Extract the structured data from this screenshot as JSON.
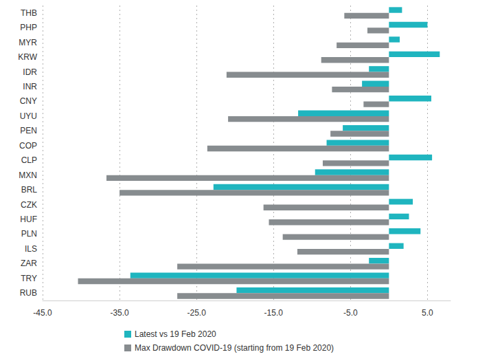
{
  "chart_data": {
    "type": "bar",
    "orientation": "horizontal",
    "categories": [
      "THB",
      "PHP",
      "MYR",
      "KRW",
      "IDR",
      "INR",
      "CNY",
      "UYU",
      "PEN",
      "COP",
      "CLP",
      "MXN",
      "BRL",
      "CZK",
      "HUF",
      "PLN",
      "ILS",
      "ZAR",
      "TRY",
      "RUB"
    ],
    "series": [
      {
        "name": "Latest vs 19 Feb 2020",
        "color": "#1fb5bf",
        "values": [
          1.7,
          5.0,
          1.4,
          6.6,
          -2.6,
          -3.5,
          5.5,
          -11.8,
          -6.0,
          -8.1,
          5.6,
          -9.6,
          -22.8,
          3.1,
          2.6,
          4.1,
          1.9,
          -2.6,
          -33.6,
          -19.8
        ]
      },
      {
        "name": "Max Drawdown COVID-19 (starting from 19 Feb 2020)",
        "color": "#878c8f",
        "values": [
          -5.8,
          -2.8,
          -6.8,
          -8.8,
          -21.1,
          -7.4,
          -3.3,
          -20.9,
          -7.6,
          -23.6,
          -8.6,
          -36.7,
          -35.0,
          -16.3,
          -15.6,
          -13.8,
          -11.9,
          -27.5,
          -40.4,
          -27.5
        ]
      }
    ],
    "xlim": [
      -45,
      8
    ],
    "xticks": [
      {
        "value": -45,
        "label": "-45.0"
      },
      {
        "value": -35,
        "label": "-35.0"
      },
      {
        "value": -25,
        "label": "-25.0"
      },
      {
        "value": -15,
        "label": "-15.0"
      },
      {
        "value": -5,
        "label": "-5.0"
      },
      {
        "value": 5,
        "label": "5.0"
      }
    ],
    "grid": true,
    "legend": "bottom-left"
  }
}
